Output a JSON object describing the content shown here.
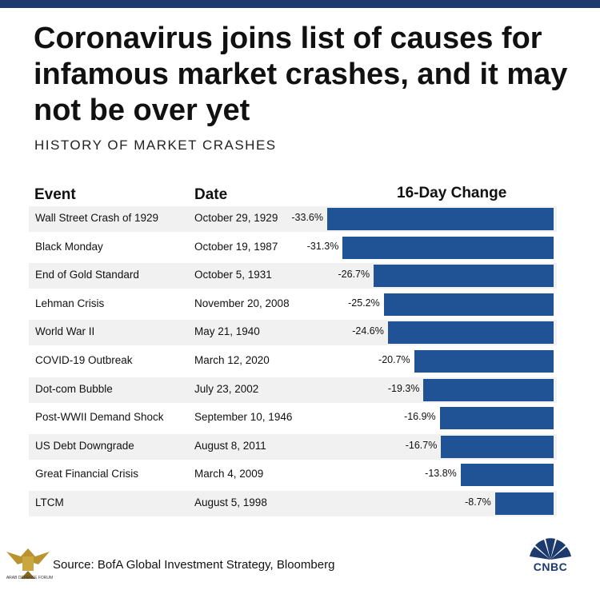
{
  "header": {
    "title": "Coronavirus joins list of causes for infamous market crashes, and it may not be over yet",
    "subtitle": "HISTORY OF MARKET CRASHES"
  },
  "columns": {
    "event": "Event",
    "date": "Date",
    "change": "16-Day Change"
  },
  "chart_data": {
    "type": "bar",
    "title": "HISTORY OF MARKET CRASHES",
    "xlabel": "16-Day Change",
    "ylabel": "Event",
    "orientation": "horizontal",
    "categories": [
      "Wall Street Crash of 1929",
      "Black Monday",
      "End of Gold Standard",
      "Lehman Crisis",
      "World War II",
      "COVID-19 Outbreak",
      "Dot-com Bubble",
      "Post-WWII Demand Shock",
      "US Debt Downgrade",
      "Great Financial Crisis",
      "LTCM"
    ],
    "dates": [
      "October 29, 1929",
      "October 19, 1987",
      "October 5, 1931",
      "November 20, 2008",
      "May 21, 1940",
      "March 12, 2020",
      "July 23, 2002",
      "September 10, 1946",
      "August 8, 2011",
      "March 4, 2009",
      "August 5, 1998"
    ],
    "values": [
      -33.6,
      -31.3,
      -26.7,
      -25.2,
      -24.6,
      -20.7,
      -19.3,
      -16.9,
      -16.7,
      -13.8,
      -8.7
    ],
    "labels": [
      "-33.6%",
      "-31.3%",
      "-26.7%",
      "-25.2%",
      "-24.6%",
      "-20.7%",
      "-19.3%",
      "-16.9%",
      "-16.7%",
      "-13.8%",
      "-8.7%"
    ],
    "xlim": [
      -40,
      0
    ],
    "bar_color": "#1f5396"
  },
  "footer": {
    "source": "Source: BofA Global Investment Strategy, Bloomberg",
    "left_logo_text": "ARAB DEFENSE FORUM",
    "brand": "CNBC"
  }
}
